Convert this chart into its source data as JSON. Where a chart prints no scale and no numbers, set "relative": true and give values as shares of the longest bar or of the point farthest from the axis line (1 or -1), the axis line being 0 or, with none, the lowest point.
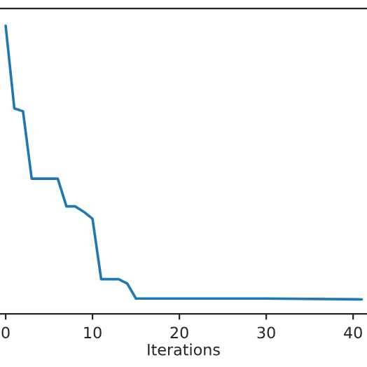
{
  "chart_data": {
    "type": "line",
    "xlabel": "Iterations",
    "relative": true,
    "x": [
      0,
      1,
      2,
      3,
      6,
      7,
      8,
      9,
      10,
      11,
      13,
      14,
      15,
      20,
      30,
      41
    ],
    "series": [
      {
        "color": "#1f77b4",
        "values": [
          1,
          0.713,
          0.703,
          0.469,
          0.469,
          0.373,
          0.373,
          0.354,
          0.33,
          0.12,
          0.12,
          0.105,
          0.053,
          0.053,
          0.053,
          0.05
        ]
      }
    ],
    "xlim": [
      -0.65,
      41.6
    ],
    "xticks": [
      0,
      10,
      20,
      30,
      40
    ],
    "grid": false,
    "tick_labels": "x"
  }
}
